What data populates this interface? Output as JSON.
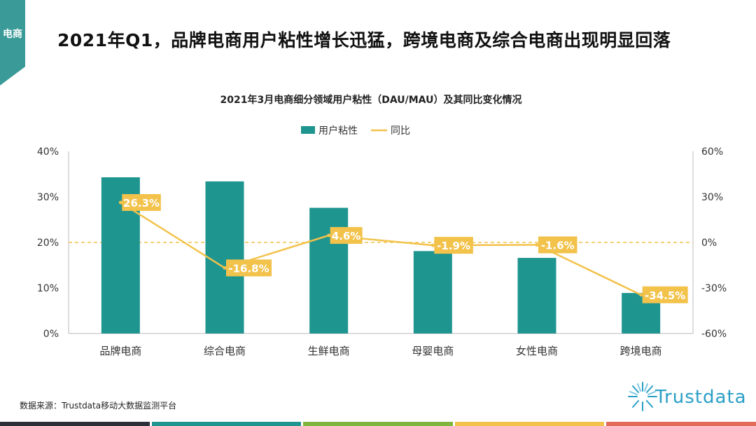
{
  "header": {
    "section_label": "电商",
    "title": "2021年Q1，品牌电商用户粘性增长迅猛，跨境电商及综合电商出现明显回落"
  },
  "chart_data": {
    "type": "bar",
    "title": "2021年3月电商细分领域用户粘性（DAU/MAU）及其同比变化情况",
    "categories": [
      "品牌电商",
      "综合电商",
      "生鲜电商",
      "母婴电商",
      "女性电商",
      "跨境电商"
    ],
    "series": [
      {
        "name": "用户粘性",
        "kind": "bar",
        "axis": "left",
        "values": [
          34.3,
          33.4,
          27.6,
          18.1,
          16.6,
          8.9
        ]
      },
      {
        "name": "同比",
        "kind": "line",
        "axis": "right",
        "values": [
          26.3,
          -16.8,
          4.6,
          -1.9,
          -1.6,
          -34.5
        ],
        "labels": [
          "26.3%",
          "-16.8%",
          "4.6%",
          "-1.9%",
          "-1.6%",
          "-34.5%"
        ]
      }
    ],
    "left_axis": {
      "min": 0,
      "max": 40,
      "ticks": [
        "0%",
        "10%",
        "20%",
        "30%",
        "40%"
      ]
    },
    "right_axis": {
      "min": -60,
      "max": 60,
      "ticks": [
        "-60%",
        "-30%",
        "0%",
        "30%",
        "60%"
      ]
    },
    "legend": {
      "position": "top-center",
      "items": [
        "用户粘性",
        "同比"
      ]
    },
    "reference_line": {
      "axis": "right",
      "value": 0,
      "style": "dashed"
    }
  },
  "colors": {
    "bar": "#1f9590",
    "line": "#f2c24b",
    "label_bg": "#f2c24b",
    "zero_line": "#f2c24b",
    "accent": "#3a9a98"
  },
  "footer": {
    "source": "数据来源：Trustdata移动大数据监测平台",
    "logo_text": "Trustdata",
    "strip_colors": [
      "#2b2f3a",
      "#1f9590",
      "#7fb53d",
      "#f2c24b",
      "#e26b5a"
    ]
  }
}
